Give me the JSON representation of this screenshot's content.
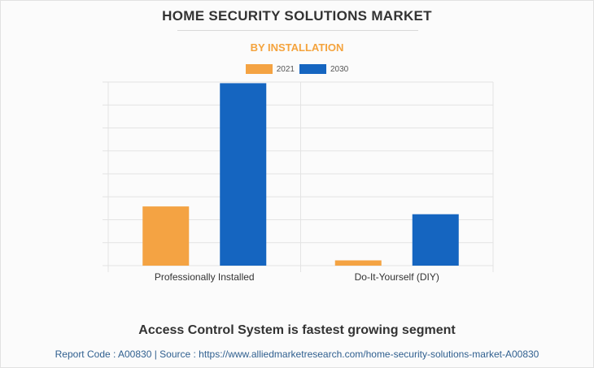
{
  "chart_data": {
    "type": "bar",
    "title": "HOME SECURITY SOLUTIONS MARKET",
    "subtitle": "BY INSTALLATION",
    "categories": [
      "Professionally Installed",
      "Do-It-Yourself (DIY)"
    ],
    "series": [
      {
        "name": "2021",
        "color": "#f4a343",
        "values": [
          25.8,
          2.3
        ]
      },
      {
        "name": "2030",
        "color": "#1565c0",
        "values": [
          79.5,
          22.4
        ]
      }
    ],
    "ylim": [
      0,
      80
    ],
    "grid": true,
    "legend": "top-center"
  },
  "footer": {
    "headline": "Access Control System is fastest growing segment",
    "source": "Report Code : A00830  |  Source : https://www.alliedmarketresearch.com/home-security-solutions-market-A00830"
  }
}
